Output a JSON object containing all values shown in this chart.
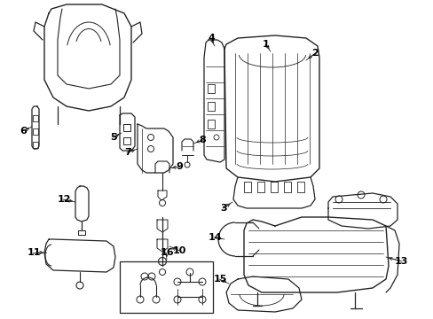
{
  "background_color": "#ffffff",
  "line_color": "#222222",
  "text_color": "#000000",
  "figure_width": 4.89,
  "figure_height": 3.6,
  "dpi": 100
}
